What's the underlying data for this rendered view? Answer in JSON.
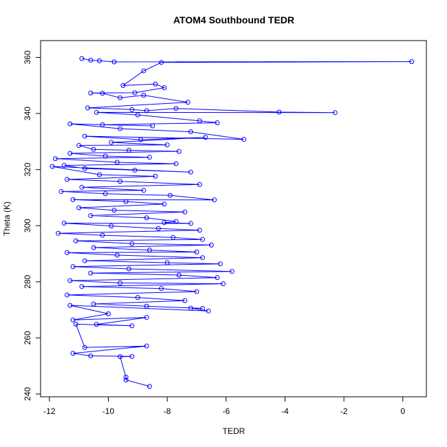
{
  "chart_data": {
    "type": "scatter",
    "title": "ATOM4 Southbound TEDR",
    "xlabel": "TEDR",
    "ylabel": "Theta (K)",
    "xlim": [
      -12.3,
      0.8
    ],
    "ylim": [
      239,
      366
    ],
    "xticks": [
      -12,
      -10,
      -8,
      -6,
      -4,
      -2,
      0
    ],
    "yticks": [
      240,
      260,
      280,
      300,
      320,
      340,
      360
    ],
    "grid": false,
    "legend": "none",
    "colors": {
      "series": "#0000ff",
      "axis": "#000000",
      "background": "#ffffff"
    },
    "series": [
      {
        "marker": "open-circle",
        "line": "connected",
        "values_note": "",
        "points": [
          [
            -10.9,
            359.6
          ],
          [
            -10.6,
            359.0
          ],
          [
            -10.3,
            358.8
          ],
          [
            -9.8,
            358.4
          ],
          [
            0.3,
            358.5
          ],
          [
            -8.2,
            358.2
          ],
          [
            -8.8,
            355.2
          ],
          [
            -9.5,
            350.0
          ],
          [
            -8.4,
            350.5
          ],
          [
            -8.1,
            349.2
          ],
          [
            -9.1,
            347.4
          ],
          [
            -10.6,
            347.3
          ],
          [
            -10.2,
            347.2
          ],
          [
            -9.6,
            345.6
          ],
          [
            -8.8,
            346.5
          ],
          [
            -7.3,
            344.0
          ],
          [
            -10.7,
            342.0
          ],
          [
            -9.2,
            341.4
          ],
          [
            -8.7,
            341.0
          ],
          [
            -7.7,
            341.8
          ],
          [
            -4.2,
            340.5
          ],
          [
            -2.3,
            340.3
          ],
          [
            -10.4,
            340.4
          ],
          [
            -9.0,
            339.5
          ],
          [
            -6.9,
            337.4
          ],
          [
            -6.3,
            336.7
          ],
          [
            -10.2,
            336.0
          ],
          [
            -8.5,
            335.6
          ],
          [
            -11.3,
            336.3
          ],
          [
            -9.6,
            334.6
          ],
          [
            -7.2,
            333.5
          ],
          [
            -5.4,
            330.8
          ],
          [
            -10.8,
            331.9
          ],
          [
            -8.9,
            330.7
          ],
          [
            -6.7,
            331.5
          ],
          [
            -9.9,
            329.7
          ],
          [
            -8.0,
            328.8
          ],
          [
            -11.0,
            328.6
          ],
          [
            -10.5,
            327.2
          ],
          [
            -9.3,
            326.9
          ],
          [
            -7.6,
            326.5
          ],
          [
            -11.3,
            325.8
          ],
          [
            -10.1,
            324.8
          ],
          [
            -8.6,
            324.4
          ],
          [
            -11.8,
            323.9
          ],
          [
            -9.7,
            322.6
          ],
          [
            -7.7,
            322.1
          ],
          [
            -11.5,
            321.5
          ],
          [
            -10.8,
            320.4
          ],
          [
            -9.1,
            319.8
          ],
          [
            -7.2,
            319.1
          ],
          [
            -11.9,
            321.1
          ],
          [
            -10.3,
            318.2
          ],
          [
            -8.4,
            317.6
          ],
          [
            -11.4,
            316.5
          ],
          [
            -9.6,
            315.8
          ],
          [
            -6.9,
            314.7
          ],
          [
            -10.9,
            313.7
          ],
          [
            -8.8,
            312.6
          ],
          [
            -11.6,
            312.2
          ],
          [
            -10.1,
            311.4
          ],
          [
            -7.9,
            310.8
          ],
          [
            -6.4,
            309.2
          ],
          [
            -11.2,
            309.3
          ],
          [
            -9.4,
            308.6
          ],
          [
            -8.1,
            307.7
          ],
          [
            -11.0,
            306.4
          ],
          [
            -9.8,
            305.5
          ],
          [
            -7.4,
            304.9
          ],
          [
            -10.6,
            303.6
          ],
          [
            -8.7,
            302.8
          ],
          [
            -7.7,
            301.5
          ],
          [
            -8.1,
            301.1
          ],
          [
            -7.2,
            300.8
          ],
          [
            -11.5,
            300.9
          ],
          [
            -9.9,
            299.9
          ],
          [
            -8.3,
            299.0
          ],
          [
            -6.9,
            298.4
          ],
          [
            -11.7,
            297.3
          ],
          [
            -10.2,
            296.6
          ],
          [
            -7.8,
            295.8
          ],
          [
            -6.8,
            295.1
          ],
          [
            -11.1,
            294.6
          ],
          [
            -9.2,
            293.6
          ],
          [
            -6.5,
            293.1
          ],
          [
            -10.5,
            292.2
          ],
          [
            -8.6,
            291.3
          ],
          [
            -7.0,
            290.6
          ],
          [
            -11.4,
            290.4
          ],
          [
            -9.7,
            289.5
          ],
          [
            -6.8,
            288.6
          ],
          [
            -10.8,
            287.5
          ],
          [
            -8.0,
            286.8
          ],
          [
            -6.2,
            286.4
          ],
          [
            -11.2,
            285.4
          ],
          [
            -9.3,
            284.6
          ],
          [
            -5.8,
            283.7
          ],
          [
            -10.6,
            283.1
          ],
          [
            -7.6,
            282.4
          ],
          [
            -6.3,
            281.5
          ],
          [
            -11.3,
            280.4
          ],
          [
            -9.6,
            279.6
          ],
          [
            -6.1,
            279.3
          ],
          [
            -10.9,
            278.3
          ],
          [
            -8.2,
            277.6
          ],
          [
            -7.0,
            276.5
          ],
          [
            -11.4,
            275.3
          ],
          [
            -9.0,
            274.4
          ],
          [
            -7.4,
            273.3
          ],
          [
            -10.5,
            272.1
          ],
          [
            -8.7,
            271.3
          ],
          [
            -6.8,
            270.5
          ],
          [
            -7.2,
            270.6
          ],
          [
            -6.6,
            269.6
          ],
          [
            -11.3,
            271.6
          ],
          [
            -10.0,
            268.6
          ],
          [
            -11.2,
            266.4
          ],
          [
            -8.7,
            267.3
          ],
          [
            -10.4,
            264.8
          ],
          [
            -9.2,
            264.3
          ],
          [
            -11.1,
            264.9
          ],
          [
            -10.8,
            256.6
          ],
          [
            -8.7,
            257.1
          ],
          [
            -11.2,
            254.5
          ],
          [
            -10.6,
            253.6
          ],
          [
            -9.2,
            253.4
          ],
          [
            -9.6,
            253.3
          ],
          [
            -9.4,
            246.0
          ],
          [
            -9.4,
            245.0
          ],
          [
            -8.6,
            242.7
          ]
        ]
      }
    ]
  }
}
